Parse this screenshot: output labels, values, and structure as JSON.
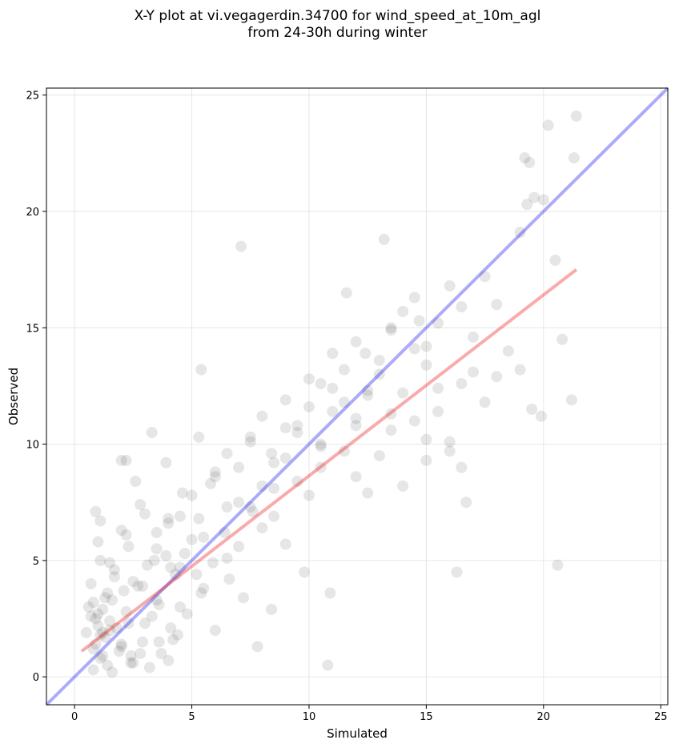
{
  "title_line1": "X-Y plot at vi.vegagerdin.34700 for wind_speed_at_10m_agl",
  "title_line2": "from 24-30h during winter",
  "chart_data": {
    "type": "scatter",
    "title": "X-Y plot at vi.vegagerdin.34700 for wind_speed_at_10m_agl from 24-30h during winter",
    "xlabel": "Simulated",
    "ylabel": "Observed",
    "xlim": [
      -1.2,
      25.3
    ],
    "ylim": [
      -1.2,
      25.3
    ],
    "xticks": [
      0,
      5,
      10,
      15,
      20,
      25
    ],
    "yticks": [
      0,
      5,
      10,
      15,
      20,
      25
    ],
    "grid": true,
    "point_color": "#333333",
    "point_alpha": 0.12,
    "lines": [
      {
        "kind": "identity",
        "color": "#0000ee",
        "alpha": 0.33,
        "x": [
          -1.2,
          25.3
        ],
        "y": [
          -1.2,
          25.3
        ]
      },
      {
        "kind": "fit",
        "color": "#ee0000",
        "alpha": 0.33,
        "x": [
          0.3,
          21.4
        ],
        "y": [
          1.1,
          17.5
        ]
      }
    ],
    "x": [
      0.5,
      0.7,
      0.8,
      0.9,
      1.0,
      1.1,
      1.2,
      1.3,
      1.4,
      1.5,
      0.6,
      0.8,
      1.0,
      1.2,
      1.4,
      1.6,
      1.8,
      2.0,
      2.2,
      2.4,
      0.7,
      0.9,
      1.1,
      1.3,
      1.5,
      1.7,
      1.9,
      2.1,
      2.3,
      2.5,
      2.7,
      2.9,
      3.1,
      3.3,
      3.5,
      3.7,
      3.9,
      4.1,
      4.3,
      4.5,
      1.0,
      1.5,
      2.0,
      2.5,
      3.0,
      3.5,
      4.0,
      4.5,
      5.0,
      5.5,
      2.2,
      2.8,
      3.4,
      4.0,
      4.6,
      5.2,
      5.8,
      6.4,
      7.0,
      7.6,
      3.0,
      3.6,
      4.2,
      4.8,
      5.4,
      6.0,
      6.6,
      7.2,
      7.8,
      8.4,
      4.5,
      5.0,
      5.5,
      6.0,
      6.5,
      7.0,
      7.5,
      8.0,
      8.5,
      9.0,
      6.0,
      6.5,
      7.0,
      7.5,
      8.0,
      8.5,
      9.0,
      9.5,
      10.0,
      10.5,
      7.5,
      8.0,
      8.5,
      9.0,
      9.5,
      10.0,
      10.5,
      11.0,
      11.5,
      12.0,
      9.0,
      9.5,
      10.0,
      10.5,
      11.0,
      11.5,
      12.0,
      12.5,
      13.0,
      13.5,
      10.5,
      11.0,
      11.5,
      12.0,
      12.5,
      13.0,
      13.5,
      14.0,
      14.5,
      15.0,
      12.0,
      12.5,
      13.0,
      13.5,
      14.0,
      14.5,
      15.0,
      15.5,
      16.0,
      16.5,
      13.5,
      14.0,
      14.5,
      15.0,
      15.5,
      16.0,
      16.5,
      17.0,
      17.5,
      18.0,
      15.0,
      15.5,
      16.0,
      16.5,
      17.0,
      17.5,
      18.0,
      18.5,
      19.0,
      19.5,
      19.2,
      19.4,
      19.6,
      20.0,
      20.2,
      21.3,
      21.4,
      19.0,
      19.3,
      20.5,
      20.8,
      19.9,
      20.6,
      21.2,
      7.1,
      13.2,
      16.3,
      16.7,
      11.6,
      14.7,
      5.3,
      5.4,
      2.2,
      1.1,
      0.9,
      12.4,
      10.9,
      3.3,
      3.9,
      2.0,
      2.6,
      8.4,
      9.8,
      10.8,
      0.8,
      1.2,
      1.6,
      2.0,
      2.4,
      2.8,
      3.2,
      3.6,
      4.0,
      4.4,
      1.1,
      1.7,
      2.3,
      2.9,
      3.5,
      4.1,
      4.7,
      5.3,
      5.9,
      6.5
    ],
    "y": [
      1.9,
      2.6,
      3.2,
      1.4,
      2.2,
      0.8,
      2.9,
      1.7,
      3.6,
      2.4,
      3.0,
      1.2,
      2.7,
      1.9,
      0.5,
      3.3,
      2.1,
      1.4,
      2.8,
      0.9,
      4.0,
      2.5,
      1.8,
      3.4,
      2.0,
      4.6,
      1.1,
      3.7,
      2.3,
      0.6,
      3.9,
      1.5,
      4.8,
      2.6,
      3.3,
      1.0,
      5.2,
      2.1,
      4.4,
      3.0,
      5.8,
      4.9,
      6.3,
      4.1,
      7.0,
      5.5,
      6.6,
      4.7,
      5.9,
      3.8,
      6.1,
      7.4,
      5.0,
      6.8,
      7.9,
      4.4,
      8.3,
      6.2,
      5.6,
      7.1,
      2.3,
      3.1,
      1.6,
      2.7,
      3.6,
      2.0,
      4.2,
      3.4,
      1.3,
      2.9,
      6.9,
      7.8,
      6.0,
      8.6,
      5.1,
      9.0,
      7.3,
      6.4,
      8.1,
      5.7,
      8.8,
      9.6,
      7.5,
      10.1,
      8.2,
      6.9,
      9.4,
      10.8,
      7.8,
      9.0,
      10.3,
      11.2,
      9.2,
      10.7,
      8.4,
      11.6,
      10.0,
      12.4,
      9.7,
      11.1,
      11.9,
      10.5,
      12.8,
      9.9,
      11.4,
      13.2,
      10.8,
      12.1,
      13.6,
      11.3,
      12.6,
      13.9,
      11.8,
      14.4,
      12.3,
      13.0,
      15.0,
      12.2,
      14.1,
      13.4,
      8.6,
      7.9,
      9.5,
      10.6,
      8.2,
      11.0,
      9.3,
      12.4,
      10.1,
      9.0,
      14.9,
      15.7,
      16.3,
      14.2,
      15.2,
      16.8,
      15.9,
      14.6,
      17.2,
      16.0,
      10.2,
      11.4,
      9.7,
      12.6,
      13.1,
      11.8,
      12.9,
      14.0,
      13.2,
      11.5,
      22.3,
      22.1,
      20.6,
      20.5,
      23.7,
      22.3,
      24.1,
      19.1,
      20.3,
      17.9,
      14.5,
      11.2,
      4.8,
      11.9,
      18.5,
      18.8,
      4.5,
      7.5,
      16.5,
      15.3,
      10.3,
      13.2,
      9.3,
      6.7,
      7.1,
      13.9,
      3.6,
      10.5,
      9.2,
      9.3,
      8.4,
      9.6,
      4.5,
      0.5,
      0.3,
      0.9,
      0.2,
      1.3,
      0.6,
      1.0,
      0.4,
      1.5,
      0.7,
      1.8,
      5.0,
      4.3,
      5.6,
      3.9,
      6.2,
      4.7,
      5.3,
      6.8,
      4.9,
      7.3
    ]
  }
}
